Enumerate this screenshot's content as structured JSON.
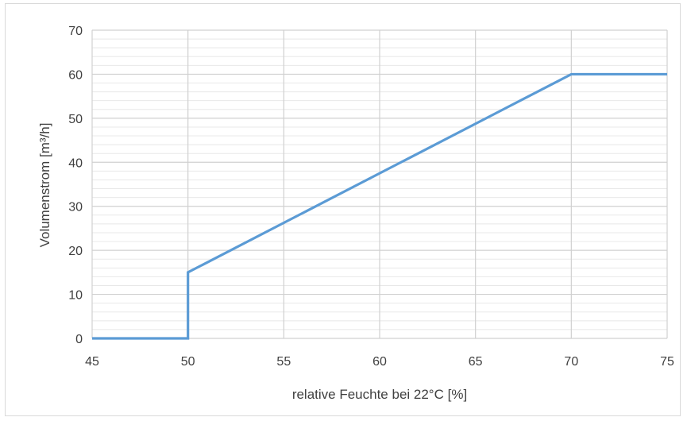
{
  "chart_data": {
    "type": "line",
    "title": "",
    "xlabel": "relative Feuchte bei 22°C [%]",
    "ylabel": "Volumenstrom [m³/h]",
    "xlim": [
      45,
      75
    ],
    "ylim": [
      0,
      70
    ],
    "x_ticks": [
      45,
      50,
      55,
      60,
      65,
      70,
      75
    ],
    "y_ticks": [
      0,
      10,
      20,
      30,
      40,
      50,
      60,
      70
    ],
    "grid": true,
    "legend": "none",
    "series": [
      {
        "color": "#5b9bd5",
        "points": [
          [
            45,
            0
          ],
          [
            50,
            0
          ],
          [
            50,
            15
          ],
          [
            70,
            60
          ],
          [
            75,
            60
          ]
        ]
      }
    ]
  }
}
